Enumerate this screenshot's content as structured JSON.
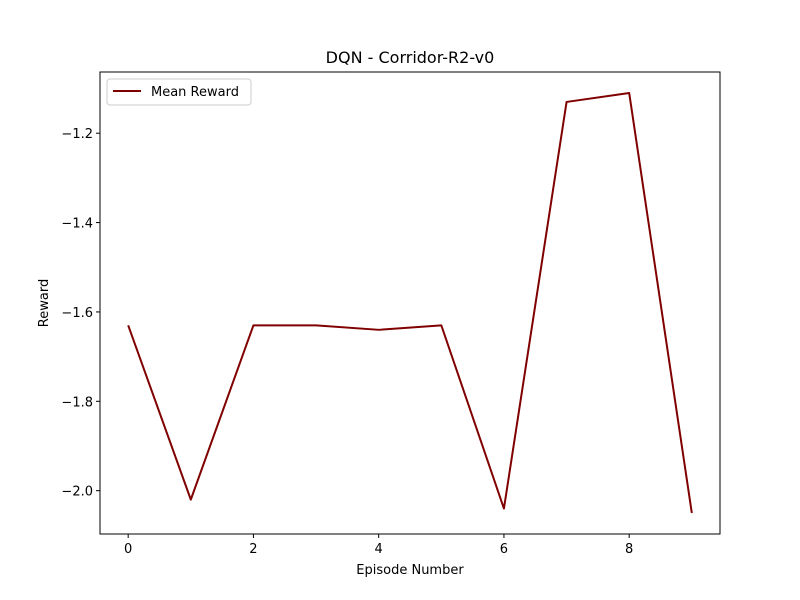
{
  "chart_data": {
    "type": "line",
    "title": "DQN - Corridor-R2-v0",
    "xlabel": "Episode Number",
    "ylabel": "Reward",
    "x": [
      0,
      1,
      2,
      3,
      4,
      5,
      6,
      7,
      8,
      9
    ],
    "series": [
      {
        "name": "Mean Reward",
        "color": "#800000",
        "values": [
          -1.63,
          -2.02,
          -1.63,
          -1.63,
          -1.64,
          -1.63,
          -2.04,
          -1.13,
          -1.11,
          -2.05
        ]
      }
    ],
    "xlim": [
      -0.45,
      9.45
    ],
    "ylim": [
      -2.097,
      -1.063
    ],
    "xticks": [
      0,
      2,
      4,
      6,
      8
    ],
    "xtick_labels": [
      "0",
      "2",
      "4",
      "6",
      "8"
    ],
    "yticks": [
      -2.0,
      -1.8,
      -1.6,
      -1.4,
      -1.2
    ],
    "ytick_labels": [
      "−2.0",
      "−1.8",
      "−1.6",
      "−1.4",
      "−1.2"
    ],
    "grid": false,
    "legend_position": "top-left"
  }
}
